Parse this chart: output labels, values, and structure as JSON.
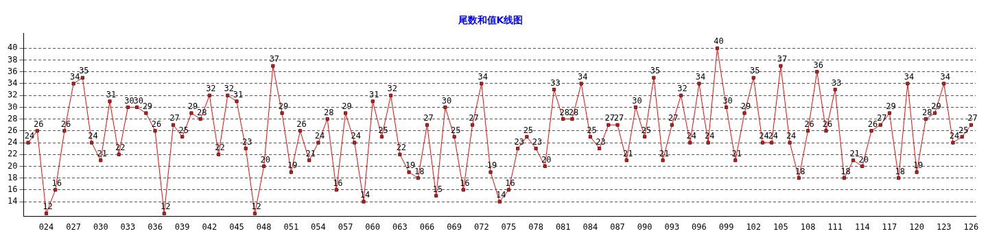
{
  "chart_data": {
    "type": "line",
    "title": "尾数和值K线图",
    "categories": [
      null,
      null,
      "024",
      null,
      null,
      "027",
      null,
      null,
      "030",
      null,
      null,
      "033",
      null,
      null,
      "036",
      null,
      null,
      "039",
      null,
      null,
      "042",
      null,
      null,
      "045",
      null,
      null,
      "048",
      null,
      null,
      "051",
      null,
      null,
      "054",
      null,
      null,
      "057",
      null,
      null,
      "060",
      null,
      null,
      "063",
      null,
      null,
      "066",
      null,
      null,
      "069",
      null,
      null,
      "072",
      null,
      null,
      "075",
      null,
      null,
      "078",
      null,
      null,
      "081",
      null,
      null,
      "084",
      null,
      null,
      "087",
      null,
      null,
      "090",
      null,
      null,
      "093",
      null,
      null,
      "096",
      null,
      null,
      "099",
      null,
      null,
      "102",
      null,
      null,
      "105",
      null,
      null,
      "108",
      null,
      null,
      "111",
      null,
      null,
      "114",
      null,
      null,
      "117",
      null,
      null,
      "120",
      null,
      null,
      "123",
      null,
      null,
      "126"
    ],
    "series": [
      {
        "color": "#ff0000",
        "values": [
          24,
          26,
          12,
          16,
          26,
          34,
          35,
          24,
          21,
          31,
          22,
          30,
          30,
          29,
          26,
          12,
          27,
          25,
          29,
          28,
          32,
          22,
          32,
          31,
          23,
          12,
          20,
          37,
          29,
          19,
          26,
          21,
          24,
          28,
          16,
          29,
          24,
          14,
          31,
          25,
          32,
          22,
          19,
          18,
          27,
          15,
          30,
          25,
          16,
          27,
          34,
          19,
          14,
          16,
          23,
          25,
          23,
          20,
          33,
          28,
          28,
          34,
          25,
          23,
          27,
          27,
          21,
          30,
          25,
          35,
          21,
          27,
          32,
          24,
          34,
          24,
          40,
          30,
          21,
          29,
          35,
          24,
          24,
          37,
          24,
          18,
          26,
          36,
          26,
          33,
          18,
          21,
          20,
          26,
          27,
          29,
          18,
          34,
          19,
          28,
          29,
          34,
          24,
          25,
          27
        ]
      }
    ],
    "ylim": [
      11.5,
      42.5
    ],
    "yticks": [
      14,
      16,
      18,
      20,
      22,
      24,
      26,
      28,
      30,
      32,
      34,
      36,
      38,
      40
    ],
    "grid": "y",
    "marker": "square",
    "data_labels": true,
    "legend": false
  }
}
